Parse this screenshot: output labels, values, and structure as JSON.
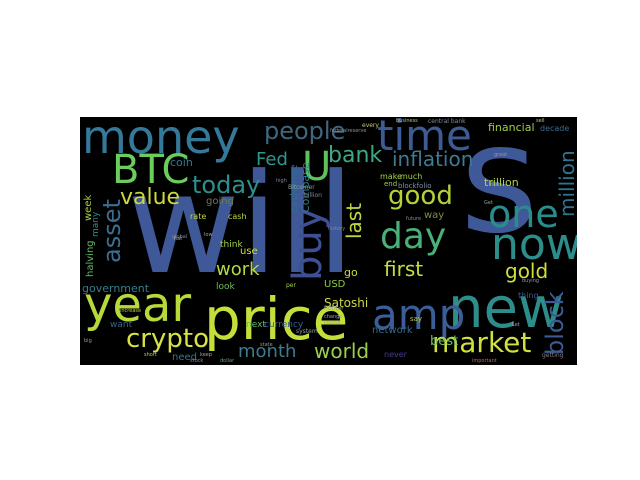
{
  "word_cloud": {
    "background": "#000000",
    "words": [
      {
        "text": "will",
        "color": "#3f5897"
      },
      {
        "text": "s",
        "color": "#3f5897"
      },
      {
        "text": "money",
        "color": "#35799a"
      },
      {
        "text": "time",
        "color": "#3d5c96"
      },
      {
        "text": "price",
        "color": "#c4df3a"
      },
      {
        "text": "year",
        "color": "#b8d93a"
      },
      {
        "text": "new",
        "color": "#2d8d8a"
      },
      {
        "text": "now",
        "color": "#2d8d8a"
      },
      {
        "text": "amp",
        "color": "#3b5d98"
      },
      {
        "text": "BTC",
        "color": "#6ccc5c"
      },
      {
        "text": "U",
        "color": "#5fc15c"
      },
      {
        "text": "buy",
        "color": "#3e4f93"
      },
      {
        "text": "one",
        "color": "#2a8d8c"
      },
      {
        "text": "day",
        "color": "#48b078"
      },
      {
        "text": "people",
        "color": "#40667d"
      },
      {
        "text": "bank",
        "color": "#3ea983"
      },
      {
        "text": "inflation",
        "color": "#3c7b92"
      },
      {
        "text": "million",
        "color": "#30738e"
      },
      {
        "text": "good",
        "color": "#b3d23a"
      },
      {
        "text": "today",
        "color": "#2e8f8c"
      },
      {
        "text": "value",
        "color": "#cbd73a"
      },
      {
        "text": "Fed",
        "color": "#2f978b"
      },
      {
        "text": "asset",
        "color": "#3b6e90"
      },
      {
        "text": "crypto",
        "color": "#d8e245"
      },
      {
        "text": "work",
        "color": "#b5d843"
      },
      {
        "text": "last",
        "color": "#c0d83f"
      },
      {
        "text": "first",
        "color": "#c7dc3e"
      },
      {
        "text": "gold",
        "color": "#d0df3a"
      },
      {
        "text": "block",
        "color": "#3c5a95"
      },
      {
        "text": "market",
        "color": "#cfe03f"
      },
      {
        "text": "month",
        "color": "#3c7c8e"
      },
      {
        "text": "world",
        "color": "#9ccf4d"
      },
      {
        "text": "best",
        "color": "#72c060"
      },
      {
        "text": "Satoshi",
        "color": "#cdd846"
      },
      {
        "text": "government",
        "color": "#30808d"
      },
      {
        "text": "halving",
        "color": "#5fb86b"
      },
      {
        "text": "week",
        "color": "#a6cc45"
      },
      {
        "text": "many",
        "color": "#2b8d8d"
      },
      {
        "text": "coin",
        "color": "#35798e"
      },
      {
        "text": "going",
        "color": "#6e7a55"
      },
      {
        "text": "financial",
        "color": "#9fcf47"
      },
      {
        "text": "trillion",
        "color": "#b0d443"
      },
      {
        "text": "Coinbase",
        "color": "#2b7f8f"
      },
      {
        "text": "exchange",
        "color": "#2f6f8c"
      },
      {
        "text": "USD",
        "color": "#8cc84a"
      },
      {
        "text": "go",
        "color": "#c8db3c"
      },
      {
        "text": "way",
        "color": "#7a8f4c"
      },
      {
        "text": "network",
        "color": "#3a6a8c"
      },
      {
        "text": "need",
        "color": "#2c7a90"
      },
      {
        "text": "want",
        "color": "#3a6487"
      },
      {
        "text": "next",
        "color": "#5fb86b"
      },
      {
        "text": "currency",
        "color": "#3b5e94"
      },
      {
        "text": "look",
        "color": "#6fbd5c"
      },
      {
        "text": "think",
        "color": "#9fcf47"
      },
      {
        "text": "use",
        "color": "#d2df40"
      },
      {
        "text": "cash",
        "color": "#bed83f"
      },
      {
        "text": "rate",
        "color": "#c8d844"
      },
      {
        "text": "make",
        "color": "#a3cf48"
      },
      {
        "text": "much",
        "color": "#a3cf48"
      },
      {
        "text": "end",
        "color": "#a3cf48"
      },
      {
        "text": "blockfolio",
        "color": "#7c8fa3"
      },
      {
        "text": "decade",
        "color": "#3b6d8c"
      },
      {
        "text": "thing",
        "color": "#3e5c96"
      },
      {
        "text": "never",
        "color": "#4b3a8f"
      },
      {
        "text": "getting",
        "color": "#8c7f7c"
      },
      {
        "text": "say",
        "color": "#b8cf4a"
      },
      {
        "text": "Bitcoiner",
        "color": "#8a9aa0"
      },
      {
        "text": "billion",
        "color": "#7a8fa0"
      },
      {
        "text": "federalreserve",
        "color": "#8094a4"
      },
      {
        "text": "central bank",
        "color": "#7b8fa3"
      },
      {
        "text": "every",
        "color": "#c7c87a"
      },
      {
        "text": "system",
        "color": "#8d9aa0"
      },
      {
        "text": "short",
        "color": "#b9d046"
      },
      {
        "text": "dollar",
        "color": "#6b9aa3"
      },
      {
        "text": "stock",
        "color": "#808fa0"
      },
      {
        "text": "low",
        "color": "#8faa8a"
      },
      {
        "text": "per",
        "color": "#a3cf48"
      },
      {
        "text": "increase",
        "color": "#b5ce4f"
      },
      {
        "text": "history",
        "color": "#8b80a0"
      },
      {
        "text": "global",
        "color": "#7f86a0"
      },
      {
        "text": "state",
        "color": "#8f9aa3"
      },
      {
        "text": "great",
        "color": "#9b90a0"
      },
      {
        "text": "real",
        "color": "#8f9aa3"
      },
      {
        "text": "future",
        "color": "#7b8fa3"
      },
      {
        "text": "change",
        "color": "#9aa3a3"
      },
      {
        "text": "course",
        "color": "#9aa3a3"
      },
      {
        "text": "sell",
        "color": "#c7c87a"
      },
      {
        "text": "business",
        "color": "#b9c26c"
      },
      {
        "text": "HODLer",
        "color": "#9aa3a3"
      },
      {
        "text": "important",
        "color": "#c06b6b"
      },
      {
        "text": "buying",
        "color": "#8d9aa0"
      },
      {
        "text": "Get",
        "color": "#9aa3a3"
      },
      {
        "text": "big",
        "color": "#8d9aa0"
      },
      {
        "text": "Let",
        "color": "#9aa3a3"
      },
      {
        "text": "keep",
        "color": "#a2a39a"
      },
      {
        "text": "high",
        "color": "#7f86a0"
      },
      {
        "text": "fiat",
        "color": "#9aa3a3"
      }
    ]
  }
}
